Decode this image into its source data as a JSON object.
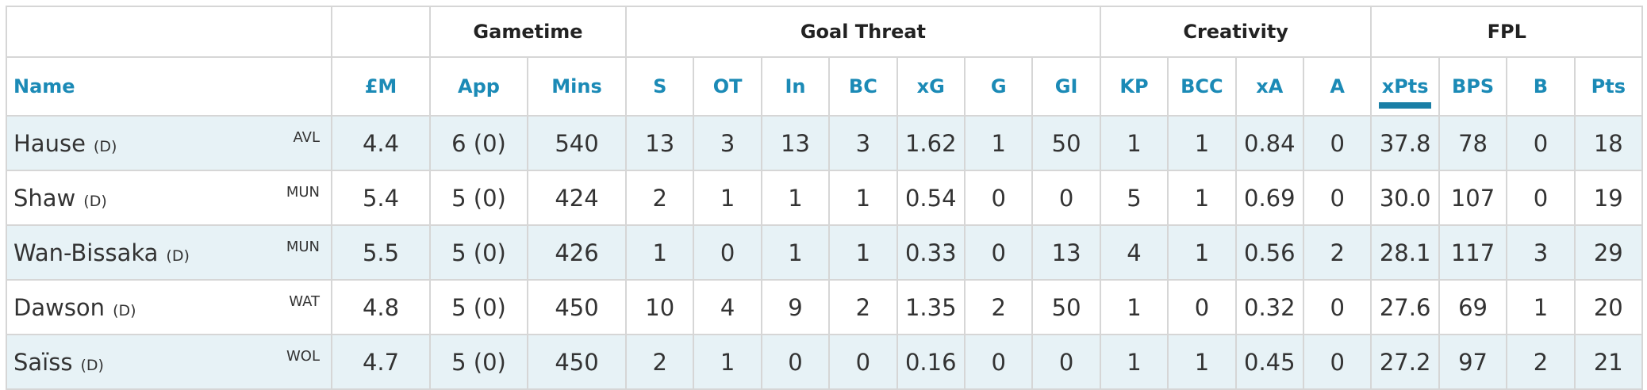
{
  "groups": [
    {
      "label": "",
      "span": 2
    },
    {
      "label": "Gametime",
      "span": 2
    },
    {
      "label": "Goal Threat",
      "span": 7
    },
    {
      "label": "Creativity",
      "span": 4
    },
    {
      "label": "FPL",
      "span": 4
    }
  ],
  "columns": [
    "Name",
    "£M",
    "App",
    "Mins",
    "S",
    "OT",
    "In",
    "BC",
    "xG",
    "G",
    "GI",
    "KP",
    "BCC",
    "xA",
    "A",
    "xPts",
    "BPS",
    "B",
    "Pts"
  ],
  "sorted_column": "xPts",
  "rows": [
    {
      "name": "Hause",
      "position": "(D)",
      "team": "AVL",
      "values": [
        "4.4",
        "6 (0)",
        "540",
        "13",
        "3",
        "13",
        "3",
        "1.62",
        "1",
        "50",
        "1",
        "1",
        "0.84",
        "0",
        "37.8",
        "78",
        "0",
        "18"
      ]
    },
    {
      "name": "Shaw",
      "position": "(D)",
      "team": "MUN",
      "values": [
        "5.4",
        "5 (0)",
        "424",
        "2",
        "1",
        "1",
        "1",
        "0.54",
        "0",
        "0",
        "5",
        "1",
        "0.69",
        "0",
        "30.0",
        "107",
        "0",
        "19"
      ]
    },
    {
      "name": "Wan-Bissaka",
      "position": "(D)",
      "team": "MUN",
      "values": [
        "5.5",
        "5 (0)",
        "426",
        "1",
        "0",
        "1",
        "1",
        "0.33",
        "0",
        "13",
        "4",
        "1",
        "0.56",
        "2",
        "28.1",
        "117",
        "3",
        "29"
      ]
    },
    {
      "name": "Dawson",
      "position": "(D)",
      "team": "WAT",
      "values": [
        "4.8",
        "5 (0)",
        "450",
        "10",
        "4",
        "9",
        "2",
        "1.35",
        "2",
        "50",
        "1",
        "0",
        "0.32",
        "0",
        "27.6",
        "69",
        "1",
        "20"
      ]
    },
    {
      "name": "Saïss",
      "position": "(D)",
      "team": "WOL",
      "values": [
        "4.7",
        "5 (0)",
        "450",
        "2",
        "1",
        "0",
        "0",
        "0.16",
        "0",
        "0",
        "1",
        "1",
        "0.45",
        "0",
        "27.2",
        "97",
        "2",
        "21"
      ]
    }
  ]
}
